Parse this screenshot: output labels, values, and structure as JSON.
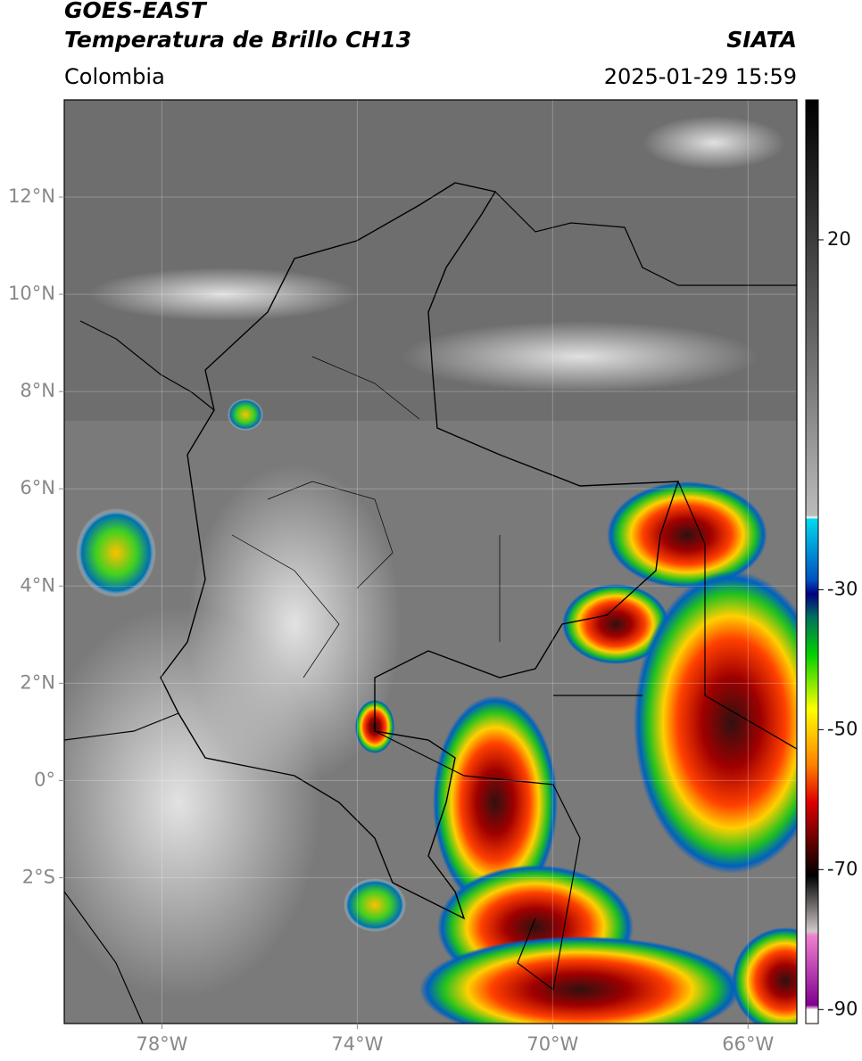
{
  "header": {
    "title": "GOES-EAST",
    "subtitle": "Temperatura de Brillo CH13",
    "source": "SIATA",
    "region": "Colombia",
    "timestamp": "2025-01-29 15:59"
  },
  "map": {
    "xlim": [
      -80,
      -65
    ],
    "ylim": [
      -5,
      14
    ],
    "xticks": [
      {
        "value": -78,
        "label": "78°W"
      },
      {
        "value": -74,
        "label": "74°W"
      },
      {
        "value": -70,
        "label": "70°W"
      },
      {
        "value": -66,
        "label": "66°W"
      }
    ],
    "yticks": [
      {
        "value": 12,
        "label": "12°N"
      },
      {
        "value": 10,
        "label": "10°N"
      },
      {
        "value": 8,
        "label": "8°N"
      },
      {
        "value": 6,
        "label": "6°N"
      },
      {
        "value": 4,
        "label": "4°N"
      },
      {
        "value": 2,
        "label": "2°N"
      },
      {
        "value": 0,
        "label": "0°"
      },
      {
        "value": -2,
        "label": "2°S"
      }
    ],
    "grid": true
  },
  "colorbar": {
    "lim": [
      -92,
      40
    ],
    "ticks": [
      20,
      -30,
      -50,
      -70,
      -90
    ]
  }
}
